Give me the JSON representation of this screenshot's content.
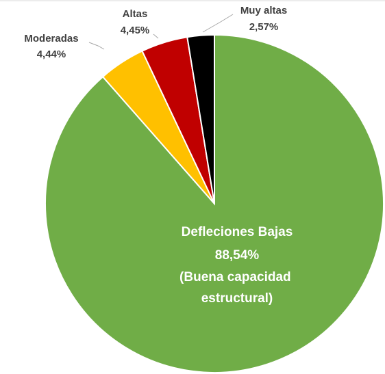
{
  "chart_data": {
    "type": "pie",
    "categories": [
      "Defleciones Bajas",
      "Moderadas",
      "Altas",
      "Muy altas"
    ],
    "values": [
      88.54,
      4.44,
      4.45,
      2.57
    ],
    "value_labels": [
      "88,54%",
      "4,44%",
      "4,45%",
      "2,57%"
    ],
    "colors": [
      "#70ad47",
      "#ffc000",
      "#c00000",
      "#000000"
    ],
    "annotation": "(Buena capacidad estructural)"
  }
}
